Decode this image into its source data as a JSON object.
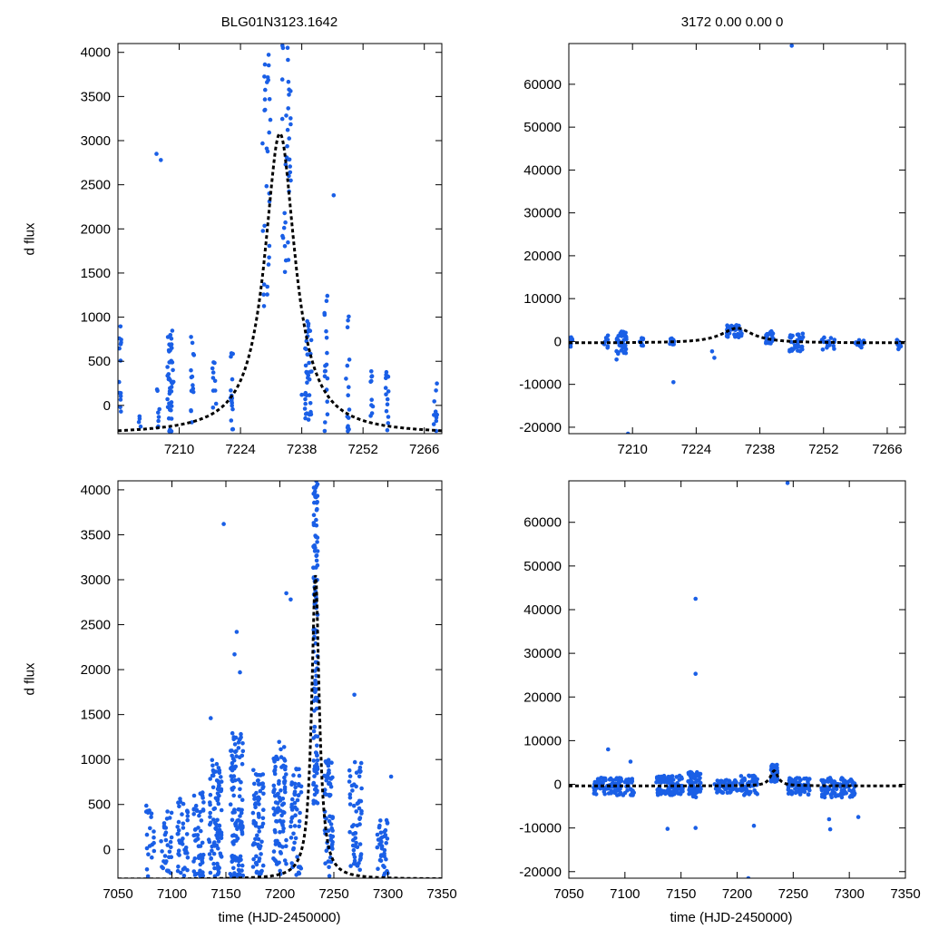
{
  "figure": {
    "title_left": "BLG01N3123.1642",
    "title_right": "3172  0.00  0.00  0",
    "ylabel": "d flux",
    "xlabel": "time (HJD-2450000)",
    "point_color": "#1a5fe6",
    "model_color": "#000000"
  },
  "chart_data": [
    {
      "id": "top-left",
      "type": "scatter",
      "xlim": [
        7196,
        7270
      ],
      "ylim": [
        -320,
        4100
      ],
      "xticks": [
        7210,
        7224,
        7238,
        7252,
        7266
      ],
      "yticks": [
        0,
        500,
        1000,
        1500,
        2000,
        2500,
        3000,
        3500,
        4000
      ],
      "ylabel": "d flux",
      "title": "BLG01N3123.1642",
      "model": {
        "type": "line",
        "style": "dashed",
        "t0": 7233,
        "peak": 3080,
        "base": -330,
        "width": 4.2
      },
      "scatter_clusters": [
        {
          "x": 7196.5,
          "spread": 0.3,
          "ymin": -300,
          "ymax": 900,
          "n": 14
        },
        {
          "x": 7201,
          "spread": 0.3,
          "ymin": -300,
          "ymax": 50,
          "n": 4
        },
        {
          "x": 7205,
          "spread": 0.5,
          "ymin": -300,
          "ymax": 250,
          "n": 8
        },
        {
          "x": 7208,
          "spread": 0.7,
          "ymin": -300,
          "ymax": 850,
          "n": 45
        },
        {
          "x": 7213,
          "spread": 0.4,
          "ymin": -200,
          "ymax": 900,
          "n": 14
        },
        {
          "x": 7218,
          "spread": 0.5,
          "ymin": -200,
          "ymax": 500,
          "n": 10
        },
        {
          "x": 7222,
          "spread": 0.3,
          "ymin": -300,
          "ymax": 650,
          "n": 16
        },
        {
          "x": 7230,
          "spread": 1.0,
          "ymin": 1000,
          "ymax": 4000,
          "n": 30
        },
        {
          "x": 7234.5,
          "spread": 1.0,
          "ymin": 1500,
          "ymax": 4100,
          "n": 36
        },
        {
          "x": 7239.5,
          "spread": 0.8,
          "ymin": -200,
          "ymax": 1000,
          "n": 40
        },
        {
          "x": 7243.5,
          "spread": 0.4,
          "ymin": -300,
          "ymax": 1300,
          "n": 18
        },
        {
          "x": 7248.5,
          "spread": 0.4,
          "ymin": -300,
          "ymax": 1300,
          "n": 16
        },
        {
          "x": 7254,
          "spread": 0.3,
          "ymin": -200,
          "ymax": 400,
          "n": 10
        },
        {
          "x": 7257.5,
          "spread": 0.4,
          "ymin": -300,
          "ymax": 450,
          "n": 14
        },
        {
          "x": 7268.5,
          "spread": 0.5,
          "ymin": -300,
          "ymax": 250,
          "n": 10
        }
      ],
      "scatter_points": [
        [
          7204.8,
          2850
        ],
        [
          7205.8,
          2780
        ],
        [
          7238.0,
          120
        ],
        [
          7245.3,
          2380
        ]
      ]
    },
    {
      "id": "top-right",
      "type": "scatter",
      "xlim": [
        7196,
        7270
      ],
      "ylim": [
        -21500,
        69500
      ],
      "xticks": [
        7210,
        7224,
        7238,
        7252,
        7266
      ],
      "yticks": [
        -20000,
        -10000,
        0,
        10000,
        20000,
        30000,
        40000,
        50000,
        60000
      ],
      "title": "3172  0.00  0.00  0",
      "model": {
        "type": "line",
        "style": "dashed",
        "t0": 7233,
        "peak": 3100,
        "base": -350,
        "width": 4.2
      },
      "scatter_clusters": [
        {
          "x": 7196.5,
          "spread": 0.3,
          "ymin": -1500,
          "ymax": 1000,
          "n": 10
        },
        {
          "x": 7204,
          "spread": 0.6,
          "ymin": -1500,
          "ymax": 1500,
          "n": 10
        },
        {
          "x": 7207.5,
          "spread": 1.2,
          "ymin": -3000,
          "ymax": 2500,
          "n": 40
        },
        {
          "x": 7212,
          "spread": 0.4,
          "ymin": -1000,
          "ymax": 1000,
          "n": 8
        },
        {
          "x": 7219,
          "spread": 0.8,
          "ymin": -1000,
          "ymax": 1000,
          "n": 12
        },
        {
          "x": 7232.5,
          "spread": 1.8,
          "ymin": 1000,
          "ymax": 4000,
          "n": 40
        },
        {
          "x": 7240,
          "spread": 1.0,
          "ymin": -500,
          "ymax": 2500,
          "n": 24
        },
        {
          "x": 7246,
          "spread": 1.5,
          "ymin": -2500,
          "ymax": 2000,
          "n": 30
        },
        {
          "x": 7253,
          "spread": 1.5,
          "ymin": -2000,
          "ymax": 1000,
          "n": 20
        },
        {
          "x": 7260,
          "spread": 1.0,
          "ymin": -1500,
          "ymax": 500,
          "n": 12
        },
        {
          "x": 7268.5,
          "spread": 0.6,
          "ymin": -2000,
          "ymax": 500,
          "n": 14
        }
      ],
      "scatter_points": [
        [
          7245,
          69000
        ],
        [
          7209,
          -21500
        ],
        [
          7219,
          -9500
        ],
        [
          7228,
          -3800
        ],
        [
          7227.5,
          -2300
        ],
        [
          7206.5,
          -4200
        ]
      ]
    },
    {
      "id": "bottom-left",
      "type": "scatter",
      "xlim": [
        7050,
        7350
      ],
      "ylim": [
        -320,
        4100
      ],
      "xticks": [
        7050,
        7100,
        7150,
        7200,
        7250,
        7300,
        7350
      ],
      "yticks": [
        0,
        500,
        1000,
        1500,
        2000,
        2500,
        3000,
        3500,
        4000
      ],
      "ylabel": "d flux",
      "xlabel": "time (HJD-2450000)",
      "model": {
        "type": "line",
        "style": "dashed",
        "t0": 7233,
        "peak": 3050,
        "base": -330,
        "width": 4.2
      },
      "scatter_clusters": [
        {
          "x": 7080,
          "spread": 4,
          "ymin": -300,
          "ymax": 550,
          "n": 20
        },
        {
          "x": 7095,
          "spread": 5,
          "ymin": -300,
          "ymax": 450,
          "n": 30
        },
        {
          "x": 7110,
          "spread": 5,
          "ymin": -300,
          "ymax": 600,
          "n": 40
        },
        {
          "x": 7125,
          "spread": 5,
          "ymin": -300,
          "ymax": 650,
          "n": 50
        },
        {
          "x": 7140,
          "spread": 6,
          "ymin": -300,
          "ymax": 1000,
          "n": 90
        },
        {
          "x": 7160,
          "spread": 6,
          "ymin": -300,
          "ymax": 1300,
          "n": 110
        },
        {
          "x": 7180,
          "spread": 5,
          "ymin": -300,
          "ymax": 900,
          "n": 70
        },
        {
          "x": 7200,
          "spread": 6,
          "ymin": -300,
          "ymax": 1200,
          "n": 90
        },
        {
          "x": 7215,
          "spread": 5,
          "ymin": -300,
          "ymax": 900,
          "n": 50
        },
        {
          "x": 7233,
          "spread": 2,
          "ymin": 500,
          "ymax": 4100,
          "n": 120
        },
        {
          "x": 7245,
          "spread": 4,
          "ymin": -300,
          "ymax": 1000,
          "n": 60
        },
        {
          "x": 7270,
          "spread": 6,
          "ymin": -300,
          "ymax": 1000,
          "n": 60
        },
        {
          "x": 7295,
          "spread": 5,
          "ymin": -300,
          "ymax": 350,
          "n": 40
        }
      ],
      "scatter_points": [
        [
          7148,
          3620
        ],
        [
          7206,
          2850
        ],
        [
          7210,
          2780
        ],
        [
          7160,
          2420
        ],
        [
          7158,
          2170
        ],
        [
          7163,
          1970
        ],
        [
          7136,
          1460
        ],
        [
          7269,
          1720
        ],
        [
          7303,
          810
        ]
      ]
    },
    {
      "id": "bottom-right",
      "type": "scatter",
      "xlim": [
        7050,
        7350
      ],
      "ylim": [
        -21500,
        69500
      ],
      "xticks": [
        7050,
        7100,
        7150,
        7200,
        7250,
        7300,
        7350
      ],
      "yticks": [
        -20000,
        -10000,
        0,
        10000,
        20000,
        30000,
        40000,
        50000,
        60000
      ],
      "xlabel": "time (HJD-2450000)",
      "model": {
        "type": "line",
        "style": "dashed",
        "t0": 7233,
        "peak": 3100,
        "base": -350,
        "width": 4.2
      },
      "scatter_clusters": [
        {
          "x": 7090,
          "spread": 18,
          "ymin": -2500,
          "ymax": 1500,
          "n": 120
        },
        {
          "x": 7140,
          "spread": 12,
          "ymin": -2500,
          "ymax": 2000,
          "n": 100
        },
        {
          "x": 7162,
          "spread": 6,
          "ymin": -3000,
          "ymax": 3000,
          "n": 70
        },
        {
          "x": 7190,
          "spread": 10,
          "ymin": -2000,
          "ymax": 1000,
          "n": 60
        },
        {
          "x": 7210,
          "spread": 8,
          "ymin": -2500,
          "ymax": 2000,
          "n": 60
        },
        {
          "x": 7233,
          "spread": 3,
          "ymin": 500,
          "ymax": 4500,
          "n": 60
        },
        {
          "x": 7255,
          "spread": 10,
          "ymin": -2500,
          "ymax": 1500,
          "n": 70
        },
        {
          "x": 7290,
          "spread": 15,
          "ymin": -3000,
          "ymax": 1500,
          "n": 100
        }
      ],
      "scatter_points": [
        [
          7245,
          69000
        ],
        [
          7163,
          42500
        ],
        [
          7163,
          25300
        ],
        [
          7085,
          8000
        ],
        [
          7105,
          5200
        ],
        [
          7138,
          -10200
        ],
        [
          7163,
          -10000
        ],
        [
          7210,
          -21500
        ],
        [
          7215,
          -9500
        ],
        [
          7283,
          -10300
        ],
        [
          7282,
          -8000
        ],
        [
          7308,
          -7500
        ]
      ]
    }
  ]
}
